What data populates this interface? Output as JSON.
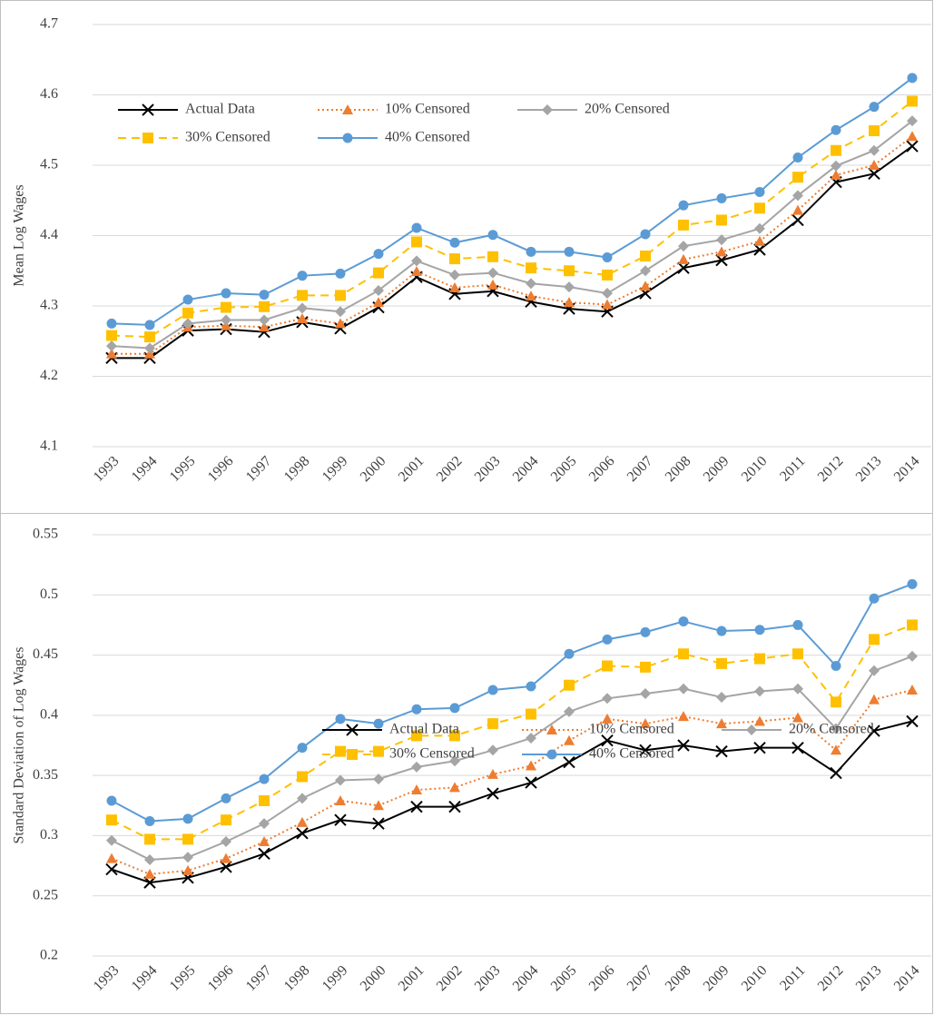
{
  "chart_data": [
    {
      "type": "line",
      "y_label": "Mean Log Wages",
      "categories": [
        "1993",
        "1994",
        "1995",
        "1996",
        "1997",
        "1998",
        "1999",
        "2000",
        "2001",
        "2002",
        "2003",
        "2004",
        "2005",
        "2006",
        "2007",
        "2008",
        "2009",
        "2010",
        "2011",
        "2012",
        "2013",
        "2014"
      ],
      "ylim": [
        4.1,
        4.7
      ],
      "yticks": [
        4.1,
        4.2,
        4.3,
        4.4,
        4.5,
        4.6,
        4.7
      ],
      "grid": true,
      "legend_position": "upper left",
      "series": [
        {
          "name": "Actual Data",
          "color": "#000000",
          "marker": "x",
          "line_style": "solid",
          "values": [
            4.226,
            4.226,
            4.265,
            4.267,
            4.263,
            4.277,
            4.268,
            4.298,
            4.341,
            4.317,
            4.321,
            4.306,
            4.296,
            4.292,
            4.318,
            4.354,
            4.365,
            4.38,
            4.422,
            4.476,
            4.488,
            4.527
          ]
        },
        {
          "name": "10% Censored",
          "color": "#ED7D31",
          "marker": "triangle",
          "line_style": "dotted",
          "values": [
            4.232,
            4.232,
            4.27,
            4.272,
            4.27,
            4.282,
            4.275,
            4.305,
            4.349,
            4.326,
            4.33,
            4.314,
            4.305,
            4.302,
            4.328,
            4.366,
            4.377,
            4.392,
            4.436,
            4.486,
            4.5,
            4.541
          ]
        },
        {
          "name": "20% Censored",
          "color": "#A5A5A5",
          "marker": "diamond",
          "line_style": "solid",
          "values": [
            4.243,
            4.24,
            4.275,
            4.28,
            4.28,
            4.297,
            4.292,
            4.322,
            4.364,
            4.344,
            4.347,
            4.332,
            4.327,
            4.318,
            4.35,
            4.385,
            4.394,
            4.41,
            4.457,
            4.499,
            4.521,
            4.563
          ]
        },
        {
          "name": "30% Censored",
          "color": "#FFC000",
          "marker": "square",
          "line_style": "dashed",
          "values": [
            4.258,
            4.256,
            4.29,
            4.298,
            4.299,
            4.315,
            4.315,
            4.347,
            4.391,
            4.367,
            4.37,
            4.354,
            4.35,
            4.344,
            4.371,
            4.415,
            4.422,
            4.439,
            4.483,
            4.521,
            4.549,
            4.591
          ]
        },
        {
          "name": "40% Censored",
          "color": "#5B9BD5",
          "marker": "circle",
          "line_style": "solid",
          "values": [
            4.275,
            4.273,
            4.309,
            4.318,
            4.316,
            4.343,
            4.346,
            4.374,
            4.411,
            4.39,
            4.401,
            4.377,
            4.377,
            4.369,
            4.402,
            4.443,
            4.453,
            4.462,
            4.511,
            4.55,
            4.583,
            4.624
          ]
        }
      ]
    },
    {
      "type": "line",
      "y_label": "Standard Deviation of Log Wages",
      "categories": [
        "1993",
        "1994",
        "1995",
        "1996",
        "1997",
        "1998",
        "1999",
        "2000",
        "2001",
        "2002",
        "2003",
        "2004",
        "2005",
        "2006",
        "2007",
        "2008",
        "2009",
        "2010",
        "2011",
        "2012",
        "2013",
        "2014"
      ],
      "ylim": [
        0.2,
        0.55
      ],
      "yticks": [
        0.2,
        0.25,
        0.3,
        0.35,
        0.4,
        0.45,
        0.5,
        0.55
      ],
      "grid": true,
      "legend_position": "lower center",
      "series": [
        {
          "name": "Actual Data",
          "color": "#000000",
          "marker": "x",
          "line_style": "solid",
          "values": [
            0.272,
            0.261,
            0.265,
            0.274,
            0.285,
            0.302,
            0.313,
            0.31,
            0.324,
            0.324,
            0.335,
            0.344,
            0.361,
            0.379,
            0.371,
            0.375,
            0.37,
            0.373,
            0.373,
            0.352,
            0.387,
            0.395
          ]
        },
        {
          "name": "10% Censored",
          "color": "#ED7D31",
          "marker": "triangle",
          "line_style": "dotted",
          "values": [
            0.281,
            0.268,
            0.271,
            0.281,
            0.295,
            0.311,
            0.329,
            0.325,
            0.338,
            0.34,
            0.351,
            0.358,
            0.379,
            0.397,
            0.393,
            0.399,
            0.393,
            0.395,
            0.398,
            0.371,
            0.413,
            0.421
          ]
        },
        {
          "name": "20% Censored",
          "color": "#A5A5A5",
          "marker": "diamond",
          "line_style": "solid",
          "values": [
            0.296,
            0.28,
            0.282,
            0.295,
            0.31,
            0.331,
            0.346,
            0.347,
            0.357,
            0.362,
            0.371,
            0.381,
            0.403,
            0.414,
            0.418,
            0.422,
            0.415,
            0.42,
            0.422,
            0.389,
            0.437,
            0.449
          ]
        },
        {
          "name": "30% Censored",
          "color": "#FFC000",
          "marker": "square",
          "line_style": "dashed",
          "values": [
            0.313,
            0.297,
            0.297,
            0.313,
            0.329,
            0.349,
            0.37,
            0.37,
            0.383,
            0.383,
            0.393,
            0.401,
            0.425,
            0.441,
            0.44,
            0.451,
            0.443,
            0.447,
            0.451,
            0.411,
            0.463,
            0.475
          ]
        },
        {
          "name": "40% Censored",
          "color": "#5B9BD5",
          "marker": "circle",
          "line_style": "solid",
          "values": [
            0.329,
            0.312,
            0.314,
            0.331,
            0.347,
            0.373,
            0.397,
            0.393,
            0.405,
            0.406,
            0.421,
            0.424,
            0.451,
            0.463,
            0.469,
            0.478,
            0.47,
            0.471,
            0.475,
            0.441,
            0.497,
            0.509
          ]
        }
      ]
    }
  ]
}
